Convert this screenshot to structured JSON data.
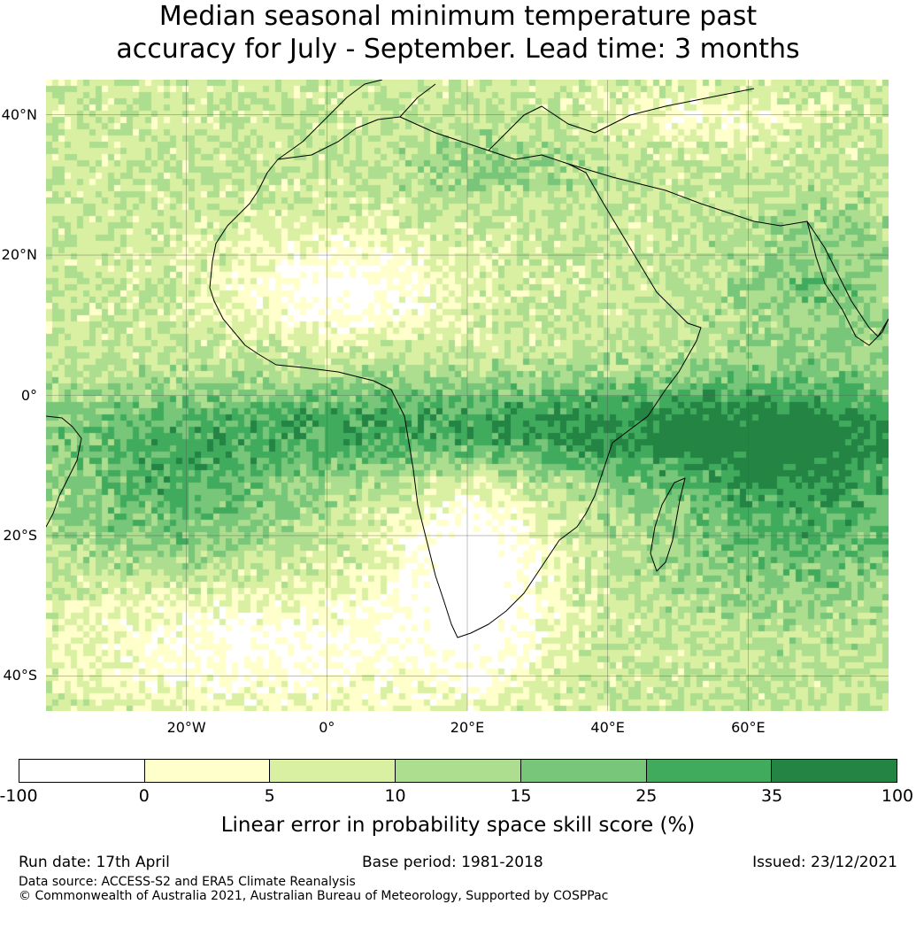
{
  "title": {
    "line1": "Median seasonal minimum temperature past",
    "line2": "accuracy for July - September. Lead time: 3 months"
  },
  "map": {
    "extent": {
      "lon_min": -40,
      "lon_max": 80,
      "lat_min": -45,
      "lat_max": 45
    },
    "lat_ticks": [
      {
        "lat": 40,
        "label": "40°N"
      },
      {
        "lat": 20,
        "label": "20°N"
      },
      {
        "lat": 0,
        "label": "0°"
      },
      {
        "lat": -20,
        "label": "20°S"
      },
      {
        "lat": -40,
        "label": "40°S"
      }
    ],
    "lon_ticks": [
      {
        "lon": -20,
        "label": "20°W"
      },
      {
        "lon": 0,
        "label": "0°"
      },
      {
        "lon": 20,
        "label": "20°E"
      },
      {
        "lon": 40,
        "label": "40°E"
      },
      {
        "lon": 60,
        "label": "60°E"
      }
    ],
    "gridline_color": "#555555"
  },
  "legend": {
    "ticks": [
      "-100",
      "0",
      "5",
      "10",
      "15",
      "25",
      "35",
      "100"
    ],
    "colors": [
      "#ffffff",
      "#ffffcc",
      "#d9f0a3",
      "#addd8e",
      "#78c679",
      "#41ab5d",
      "#238443"
    ],
    "label": "Linear error in probability space skill score (%)"
  },
  "footer": {
    "run_date": "Run date: 17th April",
    "base_period": "Base period: 1981-2018",
    "issued": "Issued: 23/12/2021",
    "data_source": "Data source: ACCESS-S2 and ERA5 Climate Reanalysis",
    "copyright": "© Commonwealth of Australia 2021, Australian Bureau of Meteorology, Supported by COSPPac"
  }
}
